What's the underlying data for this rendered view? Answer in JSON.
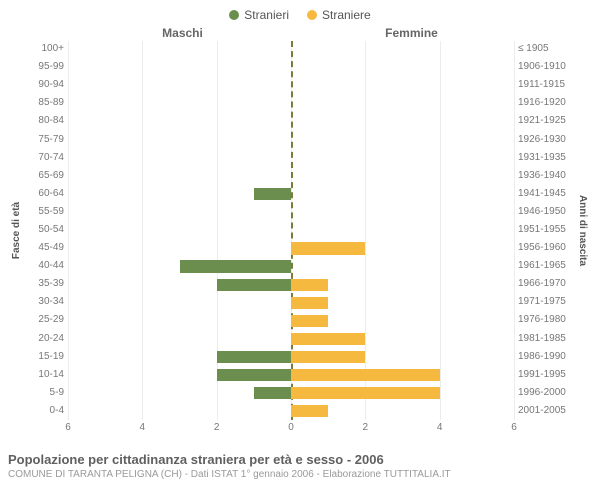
{
  "chart": {
    "type": "population-pyramid",
    "legend": {
      "male": "Stranieri",
      "female": "Straniere"
    },
    "headers": {
      "left": "Maschi",
      "right": "Femmine"
    },
    "axis_titles": {
      "left": "Fasce di età",
      "right": "Anni di nascita"
    },
    "colors": {
      "male_bar": "#6b8e4e",
      "female_bar": "#f5b940",
      "grid": "#ececec",
      "center_dashed": "#7b7b3a",
      "text": "#666666",
      "bg": "#ffffff"
    },
    "xlim": 6,
    "xticks": [
      6,
      4,
      2,
      0,
      2,
      4,
      6
    ],
    "age_labels": [
      "100+",
      "95-99",
      "90-94",
      "85-89",
      "80-84",
      "75-79",
      "70-74",
      "65-69",
      "60-64",
      "55-59",
      "50-54",
      "45-49",
      "40-44",
      "35-39",
      "30-34",
      "25-29",
      "20-24",
      "15-19",
      "10-14",
      "5-9",
      "0-4"
    ],
    "year_labels": [
      "≤ 1905",
      "1906-1910",
      "1911-1915",
      "1916-1920",
      "1921-1925",
      "1926-1930",
      "1931-1935",
      "1936-1940",
      "1941-1945",
      "1946-1950",
      "1951-1955",
      "1956-1960",
      "1961-1965",
      "1966-1970",
      "1971-1975",
      "1976-1980",
      "1981-1985",
      "1986-1990",
      "1991-1995",
      "1996-2000",
      "2001-2005"
    ],
    "male": [
      0,
      0,
      0,
      0,
      0,
      0,
      0,
      0,
      1,
      0,
      0,
      0,
      3,
      2,
      0,
      0,
      0,
      2,
      2,
      1,
      0
    ],
    "female": [
      0,
      0,
      0,
      0,
      0,
      0,
      0,
      0,
      0,
      0,
      0,
      2,
      0,
      1,
      1,
      1,
      2,
      2,
      4,
      4,
      1
    ]
  },
  "caption": {
    "title": "Popolazione per cittadinanza straniera per età e sesso - 2006",
    "subtitle": "COMUNE DI TARANTA PELIGNA (CH) - Dati ISTAT 1° gennaio 2006 - Elaborazione TUTTITALIA.IT"
  }
}
